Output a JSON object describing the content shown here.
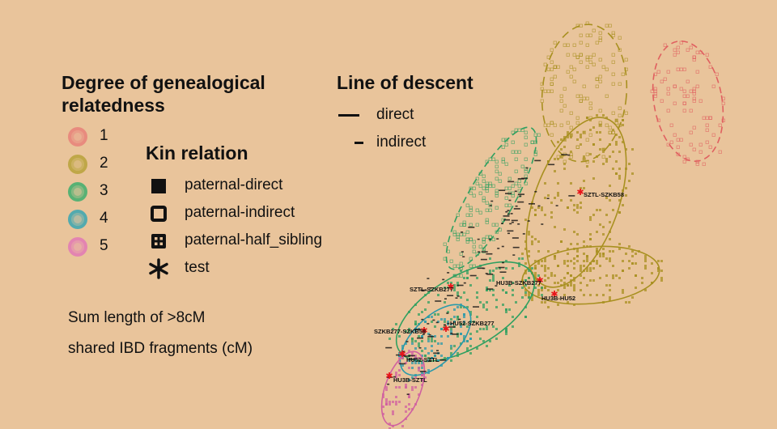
{
  "legend": {
    "degree": {
      "title_line1": "Degree of genealogical",
      "title_line2": "relatedness",
      "items": [
        {
          "label": "1",
          "color": "#e8827a"
        },
        {
          "label": "2",
          "color": "#b8a33a"
        },
        {
          "label": "3",
          "color": "#3fae6e"
        },
        {
          "label": "4",
          "color": "#3aa6b2"
        },
        {
          "label": "5",
          "color": "#e27ab6"
        }
      ]
    },
    "kin": {
      "title": "Kin relation",
      "items": [
        {
          "label": "paternal-direct",
          "icon": "filled-square-icon"
        },
        {
          "label": "paternal-indirect",
          "icon": "hollow-square-icon"
        },
        {
          "label": "paternal-half_sibling",
          "icon": "dotted-square-icon"
        },
        {
          "label": "test",
          "icon": "asterisk-icon"
        }
      ]
    },
    "descent": {
      "title": "Line of descent",
      "items": [
        {
          "label": "direct",
          "icon": "long-dash-icon"
        },
        {
          "label": "indirect",
          "icon": "short-dash-icon"
        }
      ]
    },
    "axis_note_line1": "Sum length of >8cM",
    "axis_note_line2": "shared IBD fragments (cM)"
  },
  "chart_data": {
    "type": "scatter",
    "title": "",
    "xlabel": "",
    "ylabel": "",
    "grid": false,
    "legend_position": "left",
    "series": [
      {
        "name": "1",
        "color": "#e06060"
      },
      {
        "name": "2",
        "color": "#a89020"
      },
      {
        "name": "3",
        "color": "#30a060"
      },
      {
        "name": "4",
        "color": "#2a9aaa"
      },
      {
        "name": "5",
        "color": "#d060a0"
      }
    ],
    "test_points": [
      {
        "label": "SZTL-SZKB58"
      },
      {
        "label": "HU3B-SZKB277"
      },
      {
        "label": "HU3B-HU52"
      },
      {
        "label": "SZTL-SZKB277"
      },
      {
        "label": "HU52-SZKB277"
      },
      {
        "label": "SZKB277-SZKB58"
      },
      {
        "label": "HU52-SZTL"
      },
      {
        "label": "HU3B-SZTL"
      }
    ]
  }
}
